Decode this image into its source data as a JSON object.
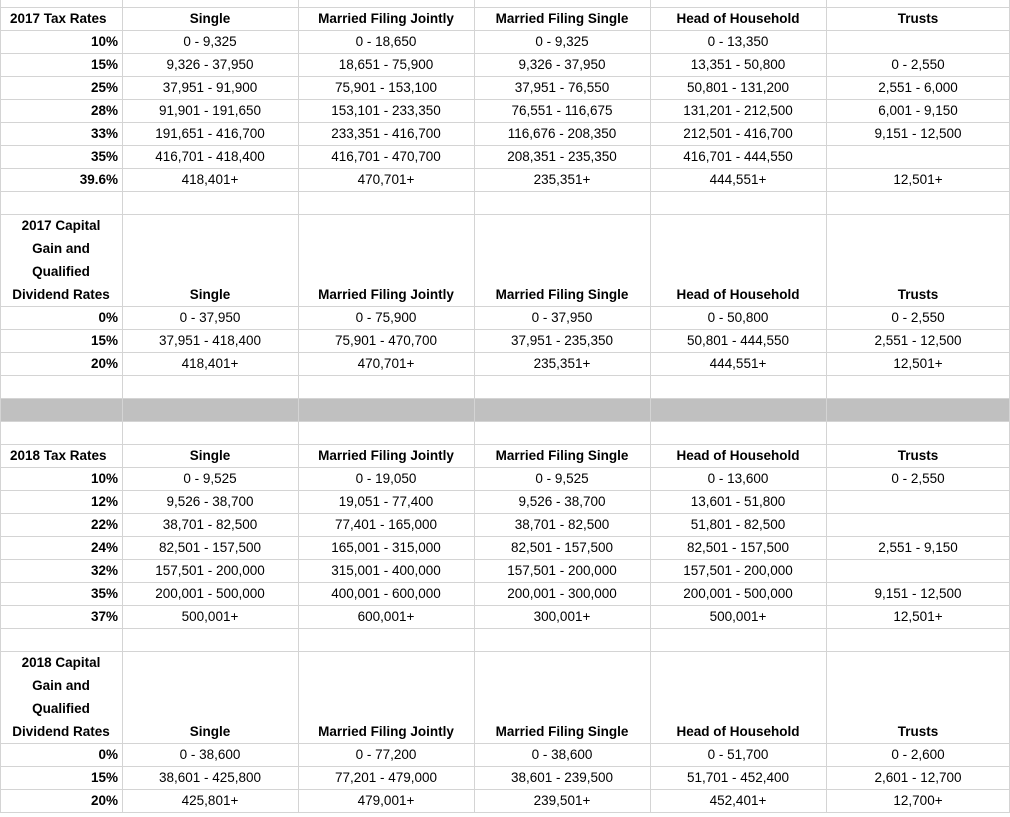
{
  "sections": [
    {
      "title_lines": [
        "2017 Tax Rates"
      ],
      "headers": [
        "Single",
        "Married Filing Jointly",
        "Married Filing Single",
        "Head of Household",
        "Trusts"
      ],
      "rows": [
        {
          "rate": "10%",
          "values": [
            "0 - 9,325",
            "0 - 18,650",
            "0 - 9,325",
            "0 - 13,350",
            null
          ]
        },
        {
          "rate": "15%",
          "values": [
            "9,326 - 37,950",
            "18,651 - 75,900",
            "9,326 - 37,950",
            "13,351 - 50,800",
            "0 - 2,550"
          ]
        },
        {
          "rate": "25%",
          "values": [
            "37,951 - 91,900",
            "75,901 - 153,100",
            "37,951 - 76,550",
            "50,801 - 131,200",
            "2,551 - 6,000"
          ]
        },
        {
          "rate": "28%",
          "values": [
            "91,901 - 191,650",
            "153,101 - 233,350",
            "76,551 - 116,675",
            "131,201 - 212,500",
            "6,001 - 9,150"
          ]
        },
        {
          "rate": "33%",
          "values": [
            "191,651 - 416,700",
            "233,351 - 416,700",
            "116,676 - 208,350",
            "212,501 - 416,700",
            "9,151 - 12,500"
          ]
        },
        {
          "rate": "35%",
          "values": [
            "416,701 - 418,400",
            "416,701 - 470,700",
            "208,351 - 235,350",
            "416,701 - 444,550",
            null
          ]
        },
        {
          "rate": "39.6%",
          "values": [
            "418,401+",
            "470,701+",
            "235,351+",
            "444,551+",
            "12,501+"
          ]
        }
      ]
    },
    {
      "title_lines": [
        "2017 Capital",
        "Gain and",
        "Qualified",
        "Dividend Rates"
      ],
      "headers": [
        "Single",
        "Married Filing Jointly",
        "Married Filing Single",
        "Head of Household",
        "Trusts"
      ],
      "rows": [
        {
          "rate": "0%",
          "values": [
            "0 - 37,950",
            "0 - 75,900",
            "0 - 37,950",
            "0 - 50,800",
            "0 - 2,550"
          ]
        },
        {
          "rate": "15%",
          "values": [
            "37,951 - 418,400",
            "75,901 - 470,700",
            "37,951 - 235,350",
            "50,801 - 444,550",
            "2,551 - 12,500"
          ]
        },
        {
          "rate": "20%",
          "values": [
            "418,401+",
            "470,701+",
            "235,351+",
            "444,551+",
            "12,501+"
          ]
        }
      ]
    },
    {
      "title_lines": [
        "2018 Tax Rates"
      ],
      "headers": [
        "Single",
        "Married Filing Jointly",
        "Married Filing Single",
        "Head of Household",
        "Trusts"
      ],
      "rows": [
        {
          "rate": "10%",
          "values": [
            "0 - 9,525",
            "0 - 19,050",
            "0 - 9,525",
            "0 - 13,600",
            "0 - 2,550"
          ]
        },
        {
          "rate": "12%",
          "values": [
            "9,526 - 38,700",
            "19,051 - 77,400",
            "9,526 - 38,700",
            "13,601 - 51,800",
            null
          ]
        },
        {
          "rate": "22%",
          "values": [
            "38,701 - 82,500",
            "77,401 - 165,000",
            "38,701 - 82,500",
            "51,801 - 82,500",
            null
          ]
        },
        {
          "rate": "24%",
          "values": [
            "82,501 - 157,500",
            "165,001 - 315,000",
            "82,501 - 157,500",
            "82,501 - 157,500",
            "2,551 - 9,150"
          ]
        },
        {
          "rate": "32%",
          "values": [
            "157,501 - 200,000",
            "315,001 - 400,000",
            "157,501 - 200,000",
            "157,501 - 200,000",
            null
          ]
        },
        {
          "rate": "35%",
          "values": [
            "200,001 - 500,000",
            "400,001 - 600,000",
            "200,001 - 300,000",
            "200,001 - 500,000",
            "9,151 - 12,500"
          ]
        },
        {
          "rate": "37%",
          "values": [
            "500,001+",
            "600,001+",
            "300,001+",
            "500,001+",
            "12,501+"
          ]
        }
      ]
    },
    {
      "title_lines": [
        "2018 Capital",
        "Gain and",
        "Qualified",
        "Dividend Rates"
      ],
      "headers": [
        "Single",
        "Married Filing Jointly",
        "Married Filing Single",
        "Head of Household",
        "Trusts"
      ],
      "rows": [
        {
          "rate": "0%",
          "values": [
            "0 - 38,600",
            "0 - 77,200",
            "0 - 38,600",
            "0 - 51,700",
            "0 - 2,600"
          ]
        },
        {
          "rate": "15%",
          "values": [
            "38,601 - 425,800",
            "77,201 - 479,000",
            "38,601 - 239,500",
            "51,701 - 452,400",
            "2,601 - 12,700"
          ]
        },
        {
          "rate": "20%",
          "values": [
            "425,801+",
            "479,001+",
            "239,501+",
            "452,401+",
            "12,700+"
          ]
        }
      ]
    }
  ]
}
